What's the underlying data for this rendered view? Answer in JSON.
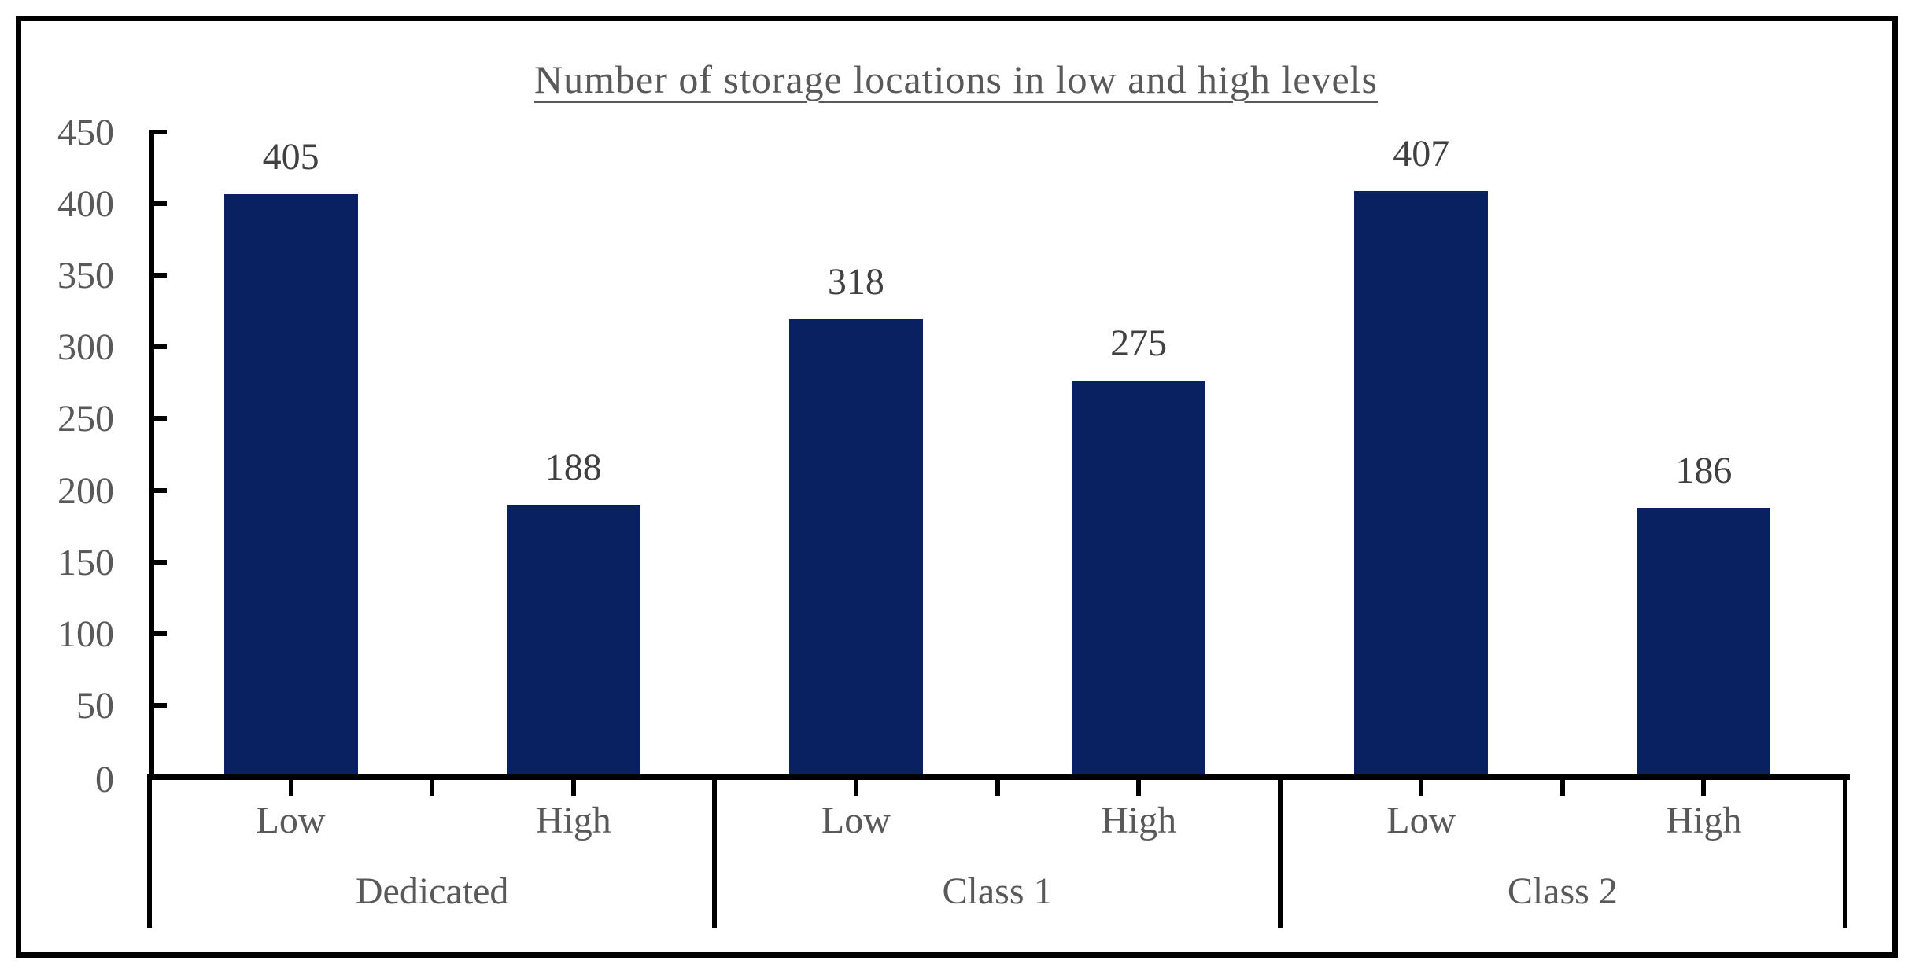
{
  "chart_data": {
    "type": "bar",
    "title": "Number of storage locations in low and high levels",
    "groups": [
      {
        "label": "Dedicated",
        "categories": [
          "Low",
          "High"
        ],
        "values": [
          405,
          188
        ]
      },
      {
        "label": "Class 1",
        "categories": [
          "Low",
          "High"
        ],
        "values": [
          318,
          275
        ]
      },
      {
        "label": "Class 2",
        "categories": [
          "Low",
          "High"
        ],
        "values": [
          407,
          186
        ]
      }
    ],
    "data_labels_shown": true,
    "yticks": [
      0,
      50,
      100,
      150,
      200,
      250,
      300,
      350,
      400,
      450
    ],
    "ylim": [
      0,
      450
    ],
    "xlabel": "",
    "ylabel": "",
    "legend": "none",
    "grid": false,
    "bar_color": "#0a2161",
    "axis_color": "#000000",
    "tick_label_color": "#595959",
    "data_label_color": "#404040",
    "title_color": "#595959"
  }
}
